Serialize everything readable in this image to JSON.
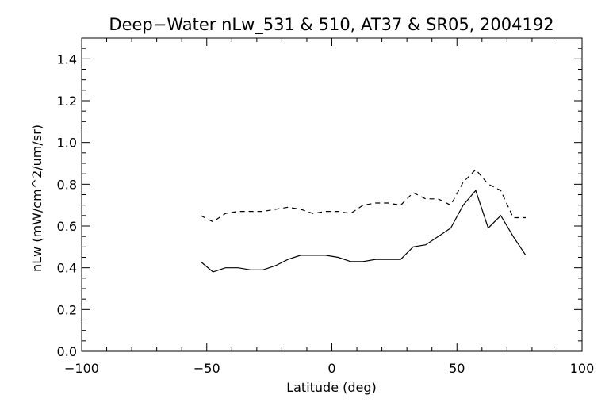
{
  "chart_data": {
    "type": "line",
    "title": "Deep−Water nLw_531 & 510, AT37 & SR05, 2004192",
    "xlabel": "Latitude (deg)",
    "ylabel": "nLw (mW/cm^2/um/sr)",
    "xlim": [
      -100,
      100
    ],
    "ylim": [
      0.0,
      1.5
    ],
    "x_ticks": [
      -100,
      -50,
      0,
      50,
      100
    ],
    "x_tick_labels": [
      "−100",
      "−50",
      "0",
      "50",
      "100"
    ],
    "y_ticks": [
      0.0,
      0.2,
      0.4,
      0.6,
      0.8,
      1.0,
      1.2,
      1.4
    ],
    "y_tick_labels": [
      "0.0",
      "0.2",
      "0.4",
      "0.6",
      "0.8",
      "1.0",
      "1.2",
      "1.4"
    ],
    "grid": false,
    "series": [
      {
        "style": "solid",
        "x": [
          -52.5,
          -47.5,
          -42.5,
          -37.5,
          -32.5,
          -27.5,
          -22.5,
          -17.5,
          -12.5,
          -7.5,
          -2.5,
          2.5,
          7.5,
          12.5,
          17.5,
          22.5,
          27.5,
          32.5,
          37.5,
          42.5,
          47.5,
          52.5,
          57.5,
          62.5,
          67.5,
          72.5,
          77.5
        ],
        "y": [
          0.43,
          0.38,
          0.4,
          0.4,
          0.39,
          0.39,
          0.41,
          0.44,
          0.46,
          0.46,
          0.46,
          0.45,
          0.43,
          0.43,
          0.44,
          0.44,
          0.44,
          0.5,
          0.51,
          0.55,
          0.59,
          0.7,
          0.77,
          0.59,
          0.65,
          0.55,
          0.46
        ]
      },
      {
        "style": "dashed",
        "x": [
          -52.5,
          -47.5,
          -42.5,
          -37.5,
          -32.5,
          -27.5,
          -22.5,
          -17.5,
          -12.5,
          -7.5,
          -2.5,
          2.5,
          7.5,
          12.5,
          17.5,
          22.5,
          27.5,
          32.5,
          37.5,
          42.5,
          47.5,
          52.5,
          57.5,
          62.5,
          67.5,
          72.5,
          77.5
        ],
        "y": [
          0.65,
          0.62,
          0.66,
          0.67,
          0.67,
          0.67,
          0.68,
          0.69,
          0.68,
          0.66,
          0.67,
          0.67,
          0.66,
          0.7,
          0.71,
          0.71,
          0.7,
          0.76,
          0.73,
          0.73,
          0.7,
          0.81,
          0.87,
          0.8,
          0.77,
          0.64,
          0.64
        ]
      }
    ]
  }
}
